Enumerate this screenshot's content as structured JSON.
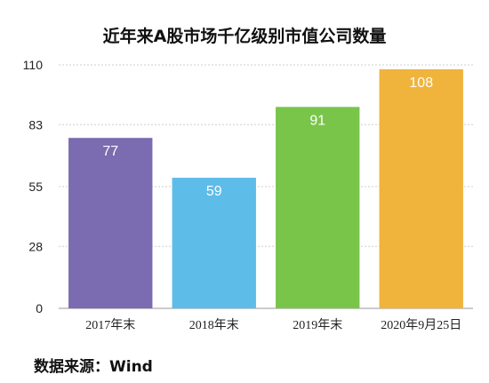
{
  "chart_data": {
    "type": "bar",
    "title": "近年来A股市场千亿级别市值公司数量",
    "categories": [
      "2017年末",
      "2018年末",
      "2019年末",
      "2020年9月25日"
    ],
    "values": [
      77,
      59,
      91,
      108
    ],
    "colors": [
      "#7b6bb0",
      "#5ebce8",
      "#79c54a",
      "#f0b43c"
    ],
    "yticks": [
      0,
      28,
      55,
      83,
      110
    ],
    "ylim": [
      0,
      110
    ],
    "grid": true,
    "data_labels": true
  },
  "source": "数据来源：Wind"
}
